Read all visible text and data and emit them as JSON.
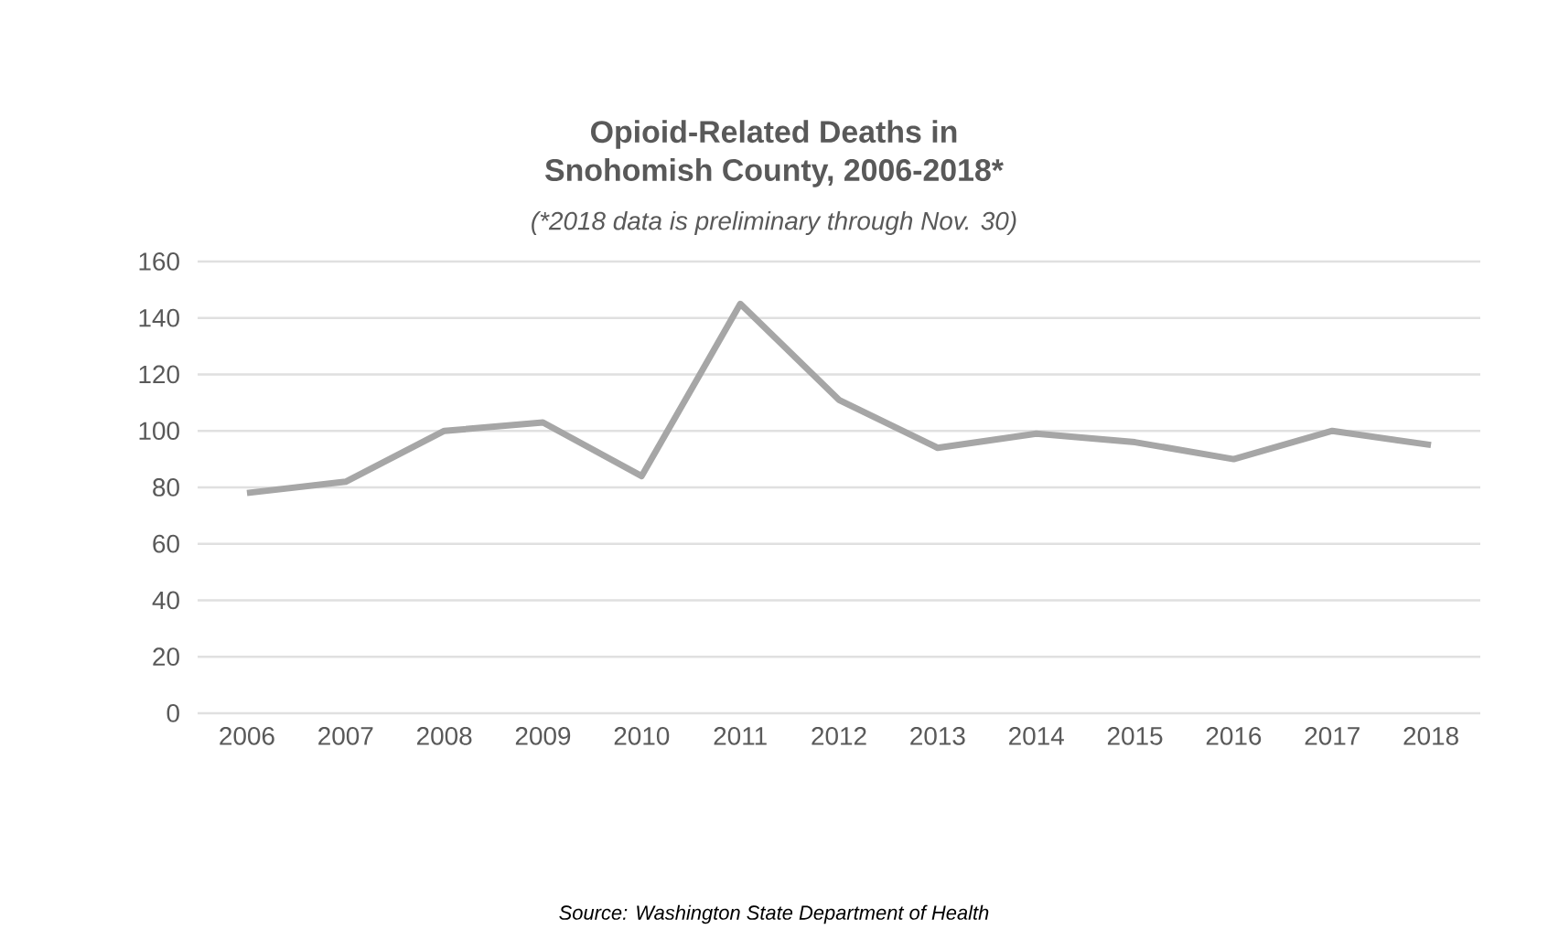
{
  "chart_data": {
    "type": "line",
    "title": "Opioid-Related Deaths in\nSnohomish County, 2006-2018*",
    "subtitle": "(*2018 data is preliminary through Nov. 30)",
    "categories": [
      "2006",
      "2007",
      "2008",
      "2009",
      "2010",
      "2011",
      "2012",
      "2013",
      "2014",
      "2015",
      "2016",
      "2017",
      "2018"
    ],
    "series": [
      {
        "color": "#a6a6a6",
        "values": [
          78,
          82,
          100,
          103,
          84,
          145,
          111,
          94,
          99,
          96,
          90,
          100,
          95
        ]
      }
    ],
    "ylim": [
      0,
      160
    ],
    "yticks": [
      0,
      20,
      40,
      60,
      80,
      100,
      120,
      140,
      160
    ],
    "grid": "y",
    "annotations": [
      "Source: Washington State Department of Health"
    ]
  }
}
